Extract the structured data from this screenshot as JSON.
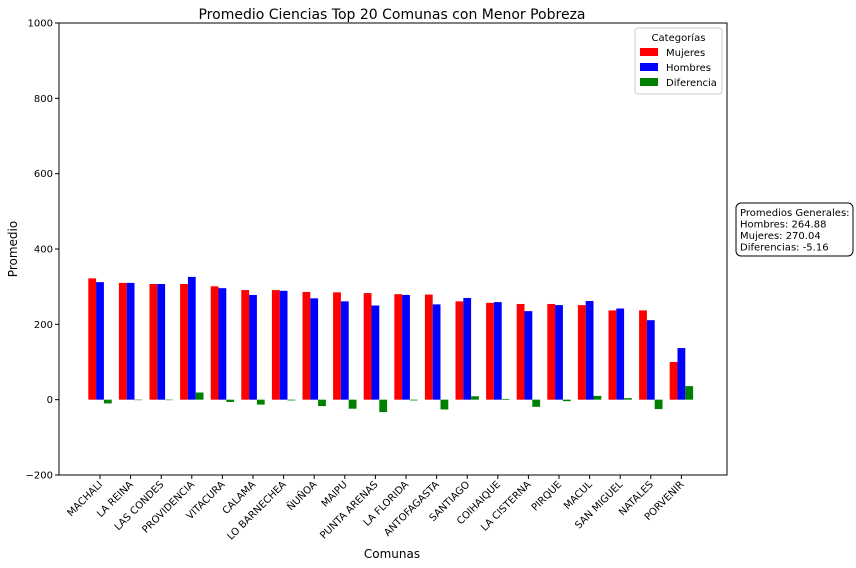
{
  "chart_data": {
    "type": "bar",
    "title": "Promedio Ciencias Top 20 Comunas con Menor Pobreza",
    "xlabel": "Comunas",
    "ylabel": "Promedio",
    "ylim": [
      -200,
      1000
    ],
    "yticks": [
      -200,
      0,
      200,
      400,
      600,
      800,
      1000
    ],
    "grid": false,
    "legend_placement": "top-right",
    "legend_title": "Categorías",
    "categories": [
      "MACHALI",
      "LA REINA",
      "LAS CONDES",
      "PROVIDENCIA",
      "VITACURA",
      "CALAMA",
      "LO BARNECHEA",
      "ÑUÑOA",
      "MAIPU",
      "PUNTA ARENAS",
      "LA FLORIDA",
      "ANTOFAGASTA",
      "SANTIAGO",
      "COIHAIQUE",
      "LA CISTERNA",
      "PIRQUE",
      "MACUL",
      "SAN MIGUEL",
      "NATALES",
      "PORVENIR"
    ],
    "series": [
      {
        "name": "Mujeres",
        "color": "#ff0000",
        "values": [
          322,
          310,
          307,
          307,
          301,
          291,
          291,
          286,
          285,
          283,
          280,
          279,
          261,
          257,
          254,
          254,
          251,
          237,
          237,
          100
        ]
      },
      {
        "name": "Hombres",
        "color": "#0000ff",
        "values": [
          312,
          310,
          307,
          326,
          296,
          278,
          289,
          269,
          261,
          250,
          278,
          253,
          270,
          259,
          235,
          251,
          262,
          242,
          211,
          137
        ]
      },
      {
        "name": "Diferencia",
        "color": "#008000",
        "values": [
          -10,
          0,
          -1,
          19,
          -6,
          -13,
          -2,
          -17,
          -24,
          -33,
          -2,
          -26,
          9,
          2,
          -19,
          -4,
          10,
          4,
          -25,
          36
        ]
      }
    ],
    "annotation": {
      "title": "Promedios Generales:",
      "lines": [
        "Hombres: 264.88",
        "Mujeres: 270.04",
        "Diferencias: -5.16"
      ]
    }
  }
}
